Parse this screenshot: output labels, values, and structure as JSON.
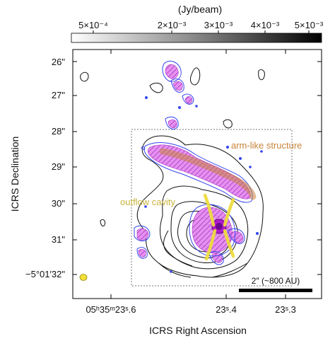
{
  "chart_data": {
    "type": "contour",
    "title": "",
    "xlabel": "ICRS Right Ascension",
    "ylabel": "ICRS Declination",
    "colorbar": {
      "label": "(Jy/beam)",
      "scale": "log",
      "ticks": [
        "5×10⁻⁴",
        "2×10⁻³",
        "3×10⁻³",
        "4×10⁻³",
        "5×10⁻³"
      ],
      "range": [
        0.0005,
        0.005
      ],
      "cmap": "gray-to-black"
    },
    "x_ticks": [
      "05ʰ35ᵐ23ˢ.6",
      "23ˢ.4",
      "23ˢ.3"
    ],
    "y_ticks": [
      "26\"",
      "27\"",
      "28\"",
      "29\"",
      "30\"",
      "31\"",
      "−5°01′32\""
    ],
    "annotations": [
      {
        "text": "arm-like structure",
        "color": "#c8843a"
      },
      {
        "text": "outflow cavity",
        "color": "#c9b43c"
      },
      {
        "text": "2″ (~800 AU)",
        "color": "#111111"
      }
    ],
    "series": [
      {
        "color": "#111111",
        "style": "black contours"
      },
      {
        "color": "#3344ee",
        "style": "blue contours"
      },
      {
        "color": "#d855e8",
        "style": "magenta hatched emission"
      }
    ],
    "zoom_box": true,
    "beam_color": "#f2df3a",
    "grid": false
  }
}
